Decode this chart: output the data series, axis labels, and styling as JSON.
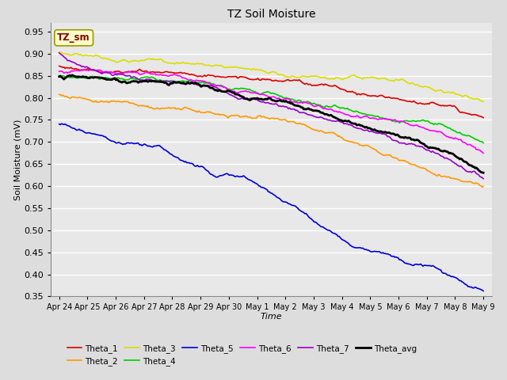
{
  "title": "TZ Soil Moisture",
  "xlabel": "Time",
  "ylabel": "Soil Moisture (mV)",
  "ylim": [
    0.35,
    0.97
  ],
  "yticks": [
    0.35,
    0.4,
    0.45,
    0.5,
    0.55,
    0.6,
    0.65,
    0.7,
    0.75,
    0.8,
    0.85,
    0.9,
    0.95
  ],
  "xtick_labels": [
    "Apr 24",
    "Apr 25",
    "Apr 26",
    "Apr 27",
    "Apr 28",
    "Apr 29",
    "Apr 30",
    "May 1",
    "May 2",
    "May 3",
    "May 4",
    "May 5",
    "May 6",
    "May 7",
    "May 8",
    "May 9"
  ],
  "n_ticks": 16,
  "series_colors": {
    "Theta_1": "#dd0000",
    "Theta_2": "#ff9900",
    "Theta_3": "#dddd00",
    "Theta_4": "#00cc00",
    "Theta_5": "#0000dd",
    "Theta_6": "#ff00ff",
    "Theta_7": "#9900cc",
    "Theta_avg": "#000000"
  },
  "bg_color": "#dddddd",
  "plot_bg": "#e8e8e8",
  "grid_color": "#ffffff",
  "annotation_text": "TZ_sm",
  "annotation_color": "#880000",
  "annotation_bg": "#ffffcc",
  "annotation_border": "#999900",
  "n_dense": 360
}
